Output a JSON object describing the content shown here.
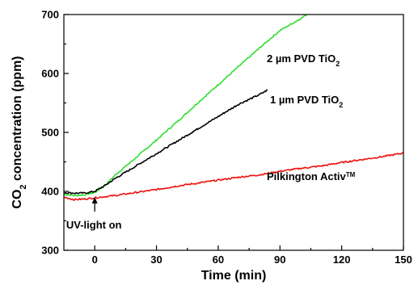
{
  "chart_data": {
    "type": "line",
    "xlabel": "Time (min)",
    "ylabel": {
      "pre": "CO",
      "sub": "2",
      "post": " concentration (ppm)"
    },
    "xlim": [
      -15,
      150
    ],
    "ylim": [
      300,
      700
    ],
    "x_ticks": [
      0,
      30,
      60,
      90,
      120,
      150
    ],
    "y_ticks": [
      300,
      400,
      500,
      600,
      700
    ],
    "grid": false,
    "series": [
      {
        "name": {
          "pre": "2 µm PVD TiO",
          "sub": "2",
          "post": ""
        },
        "color": "#33dd33",
        "x": [
          -15,
          -10,
          -5,
          0,
          5,
          10,
          20,
          30,
          40,
          50,
          60,
          70,
          80,
          90,
          100,
          103
        ],
        "y": [
          395,
          393,
          394,
          398,
          410,
          428,
          457,
          487,
          518,
          550,
          581,
          612,
          643,
          673,
          693,
          700
        ]
      },
      {
        "name": {
          "pre": "1 µm PVD TiO",
          "sub": "2",
          "post": ""
        },
        "color": "#000000",
        "x": [
          -15,
          -10,
          -5,
          0,
          5,
          10,
          20,
          30,
          40,
          50,
          60,
          70,
          80,
          84
        ],
        "y": [
          398,
          397,
          397,
          400,
          410,
          422,
          443,
          464,
          485,
          506,
          527,
          548,
          564,
          572
        ]
      },
      {
        "name": {
          "pre": "Pilkington Activ",
          "sub": "",
          "sup": "TM"
        },
        "color": "#ee1111",
        "x": [
          -15,
          -10,
          -5,
          0,
          10,
          20,
          30,
          40,
          50,
          60,
          70,
          80,
          90,
          100,
          110,
          120,
          130,
          140,
          150
        ],
        "y": [
          390,
          386,
          387,
          389,
          393,
          398,
          403,
          409,
          414,
          419,
          424,
          428,
          434,
          439,
          443,
          449,
          454,
          459,
          465
        ]
      }
    ],
    "annotations": [
      {
        "text": "UV-light on",
        "x": 0
      }
    ]
  }
}
